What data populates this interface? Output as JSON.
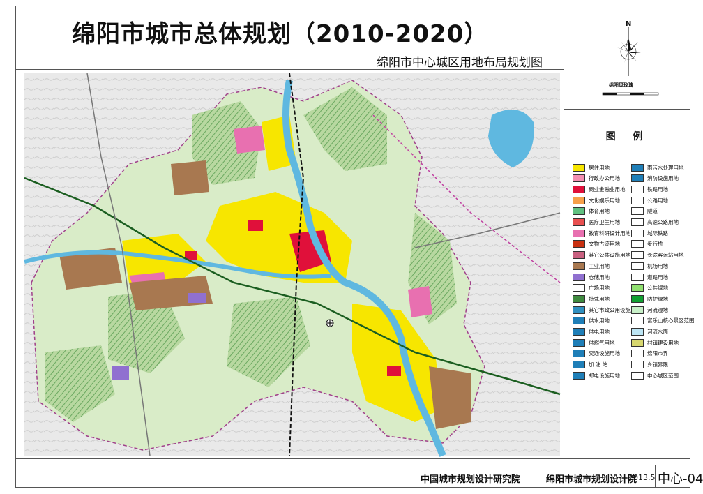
{
  "title": "绵阳市城市总体规划（2010-2020）",
  "subtitle": "绵阳市中心城区用地布局规划图",
  "compass": {
    "north": "N",
    "rose_label": "绵阳风玫瑰"
  },
  "legend": {
    "title": "图 例",
    "left": [
      {
        "label": "居住用地",
        "color": "#f7e600"
      },
      {
        "label": "行政办公用地",
        "color": "#f48fb1"
      },
      {
        "label": "商业金融业用地",
        "color": "#e0103a"
      },
      {
        "label": "文化娱乐用地",
        "color": "#f7a04a"
      },
      {
        "label": "体育用地",
        "color": "#60c080"
      },
      {
        "label": "医疗卫生用地",
        "color": "#e85050"
      },
      {
        "label": "教育科研设计用地",
        "color": "#e870b0"
      },
      {
        "label": "文物古迹用地",
        "color": "#c83010"
      },
      {
        "label": "其它公共设施用地",
        "color": "#c86080"
      },
      {
        "label": "工业用地",
        "color": "#a87850"
      },
      {
        "label": "仓储用地",
        "color": "#9070d0"
      },
      {
        "label": "广场用地",
        "color": "#ffffff"
      },
      {
        "label": "特殊用地",
        "color": "#3f8a3f"
      },
      {
        "label": "其它市政公用设施用地",
        "color": "#3090c0"
      },
      {
        "label": "供水用地",
        "color": "#1f7fb8"
      },
      {
        "label": "供电用地",
        "color": "#1f7fb8"
      },
      {
        "label": "供燃气用地",
        "color": "#1f7fb8"
      },
      {
        "label": "交通设施用地",
        "color": "#1f7fb8"
      },
      {
        "label": "加 油 站",
        "color": "#1f7fb8"
      },
      {
        "label": "邮电设施用地",
        "color": "#1f7fb8"
      }
    ],
    "right": [
      {
        "label": "雨污水处理用地",
        "color": "#1f7fb8"
      },
      {
        "label": "消防设施用地",
        "color": "#1f7fb8"
      },
      {
        "label": "铁路用地",
        "color": "#ffffff"
      },
      {
        "label": "公路用地",
        "color": "#ffffff"
      },
      {
        "label": "隧道",
        "color": "#ffffff"
      },
      {
        "label": "高速公路用地",
        "color": "#ffffff"
      },
      {
        "label": "城际铁路",
        "color": "#ffffff"
      },
      {
        "label": "步行桥",
        "color": "#ffffff"
      },
      {
        "label": "长途客运站用地",
        "color": "#ffffff"
      },
      {
        "label": "机场用地",
        "color": "#ffffff"
      },
      {
        "label": "道路用地",
        "color": "#ffffff"
      },
      {
        "label": "公共绿地",
        "color": "#90e070"
      },
      {
        "label": "防护绿地",
        "color": "#10a030"
      },
      {
        "label": "河流湿地",
        "color": "#c8f0c8"
      },
      {
        "label": "富乐山核心景区范围",
        "color": "#ffffff"
      },
      {
        "label": "河流水面",
        "color": "#bde6f5"
      },
      {
        "label": "村镇建设用地",
        "color": "#d8d870"
      },
      {
        "label": "绵阳市界",
        "color": "#ffffff"
      },
      {
        "label": "乡镇界限",
        "color": "#ffffff"
      },
      {
        "label": "中心城区范围",
        "color": "#ffffff"
      }
    ]
  },
  "footer": {
    "org1": "中国城市规划设计研究院",
    "org2": "绵阳市城市规划设计院",
    "date": "2013.5",
    "sheet": "中心-04"
  },
  "colors": {
    "residential": "#f7e600",
    "commercial": "#e0103a",
    "industrial": "#a87850",
    "education": "#e870b0",
    "green": "#9fcf80",
    "hatch_green": "#7fb870",
    "water": "#5fb8e0",
    "terrain": "#e6e6e6",
    "boundary": "#a0408a"
  }
}
